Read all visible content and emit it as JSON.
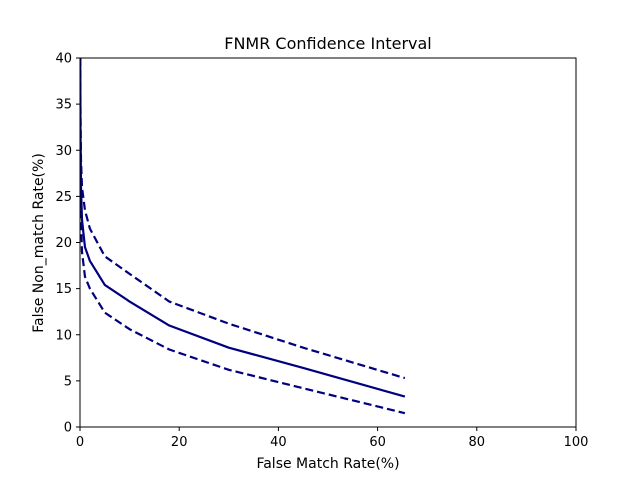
{
  "chart_data": {
    "type": "line",
    "title": "FNMR Confidence Interval",
    "xlabel": "False Match Rate(%)",
    "ylabel": "False Non_match Rate(%)",
    "xlim": [
      0,
      100
    ],
    "ylim": [
      0,
      40
    ],
    "xticks": [
      0,
      20,
      40,
      60,
      80,
      100
    ],
    "yticks": [
      0,
      5,
      10,
      15,
      20,
      25,
      30,
      35,
      40
    ],
    "grid": false,
    "legend": "none",
    "color": "#000080",
    "series": [
      {
        "style": "solid",
        "points": [
          [
            0.05,
            40.0
          ],
          [
            0.1,
            32.0
          ],
          [
            0.2,
            26.0
          ],
          [
            0.4,
            22.5
          ],
          [
            1.0,
            19.5
          ],
          [
            2.0,
            18.0
          ],
          [
            5.0,
            15.4
          ],
          [
            10.0,
            13.6
          ],
          [
            18.0,
            11.0
          ],
          [
            30.0,
            8.6
          ],
          [
            45.0,
            6.4
          ],
          [
            65.5,
            3.3
          ]
        ]
      },
      {
        "style": "dashed",
        "points": [
          [
            0.05,
            40.0
          ],
          [
            0.1,
            34.0
          ],
          [
            0.2,
            29.0
          ],
          [
            0.4,
            26.0
          ],
          [
            1.0,
            23.5
          ],
          [
            2.0,
            21.5
          ],
          [
            5.0,
            18.5
          ],
          [
            10.0,
            16.6
          ],
          [
            18.0,
            13.6
          ],
          [
            30.0,
            11.2
          ],
          [
            45.0,
            8.6
          ],
          [
            65.5,
            5.3
          ]
        ]
      },
      {
        "style": "dashed",
        "points": [
          [
            0.1,
            30.0
          ],
          [
            0.2,
            23.0
          ],
          [
            0.4,
            19.0
          ],
          [
            1.0,
            16.3
          ],
          [
            2.0,
            15.0
          ],
          [
            5.0,
            12.4
          ],
          [
            10.0,
            10.6
          ],
          [
            18.0,
            8.4
          ],
          [
            30.0,
            6.2
          ],
          [
            45.0,
            4.2
          ],
          [
            65.5,
            1.5
          ]
        ]
      }
    ]
  }
}
